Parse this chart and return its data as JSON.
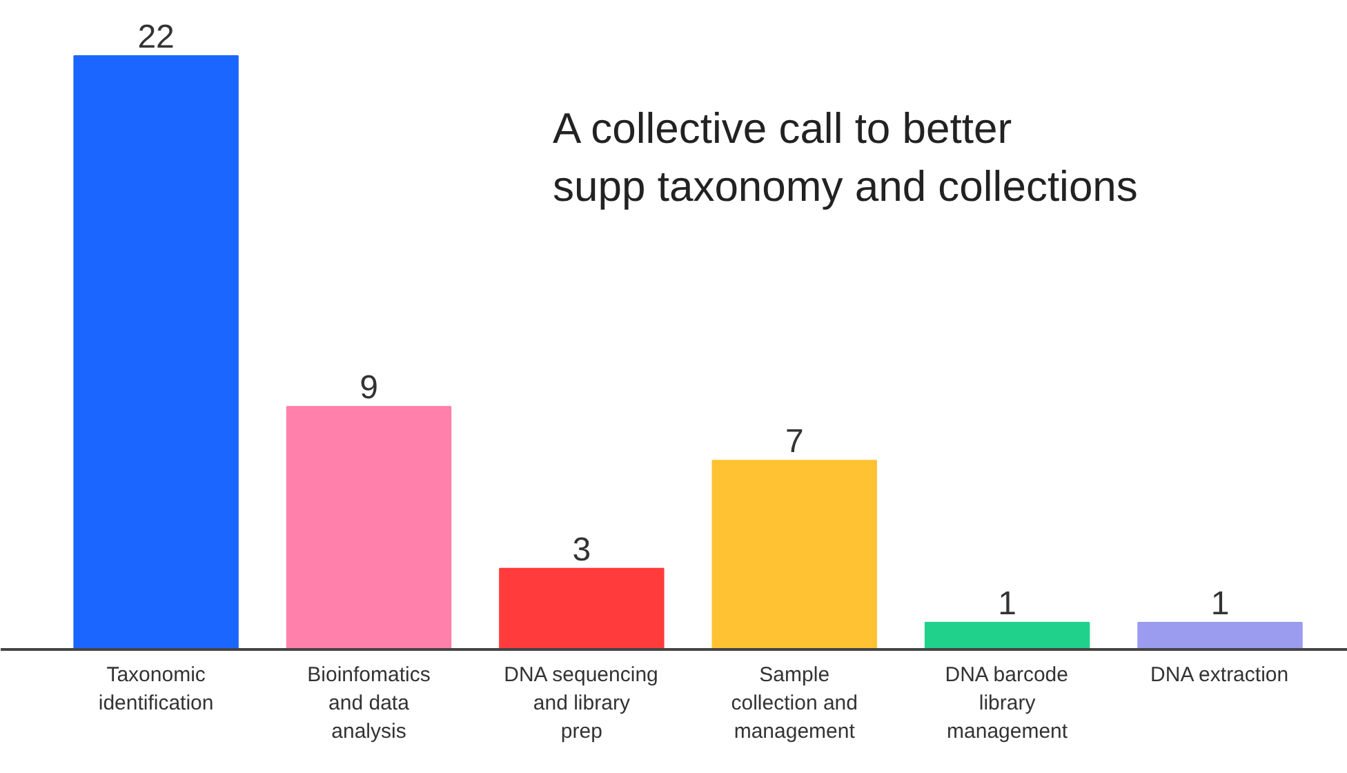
{
  "chart_data": {
    "type": "bar",
    "categories": [
      "Taxonomic identification",
      "Bioinfomatics and data analysis",
      "DNA sequencing and library prep",
      "Sample collection and management",
      "DNA barcode library management",
      "DNA extraction"
    ],
    "values": [
      22,
      9,
      3,
      7,
      1,
      1
    ],
    "colors": [
      "#1a66ff",
      "#ff80aa",
      "#ff3b3b",
      "#ffc233",
      "#1fd18a",
      "#9b9bef"
    ],
    "data_labels": true,
    "grid": false,
    "annotations": [
      "A collective call to better supp taxonomy and collections"
    ]
  }
}
